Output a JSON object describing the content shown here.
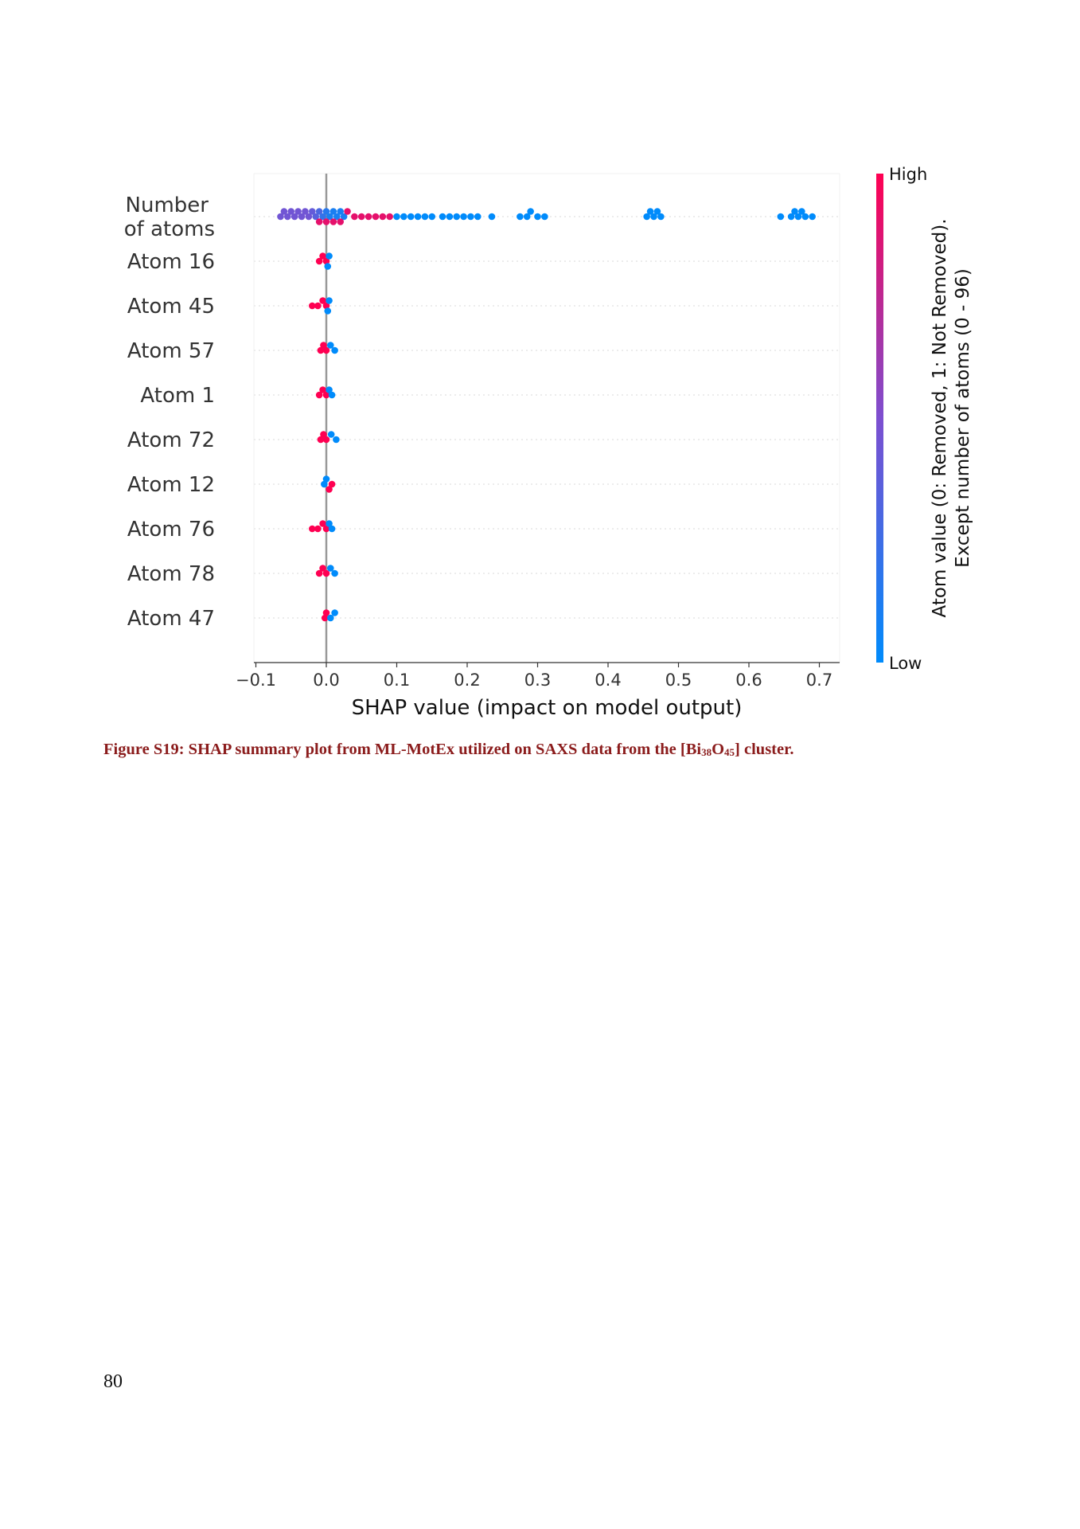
{
  "chart_data": {
    "type": "scatter",
    "subtype": "shap-beeswarm",
    "features": [
      "Number of atoms",
      "Atom 16",
      "Atom 45",
      "Atom 57",
      "Atom 1",
      "Atom 72",
      "Atom 12",
      "Atom 76",
      "Atom 78",
      "Atom 47"
    ],
    "feature_label_lines": [
      [
        "Number",
        "of atoms"
      ],
      [
        "Atom 16"
      ],
      [
        "Atom 45"
      ],
      [
        "Atom 57"
      ],
      [
        "Atom 1"
      ],
      [
        "Atom 72"
      ],
      [
        "Atom 12"
      ],
      [
        "Atom 76"
      ],
      [
        "Atom 78"
      ],
      [
        "Atom 47"
      ]
    ],
    "xlabel": "SHAP value (impact on model output)",
    "xticks": [
      -0.1,
      0.0,
      0.1,
      0.2,
      0.3,
      0.4,
      0.5,
      0.6,
      0.7
    ],
    "xtick_labels": [
      "−0.1",
      "0.0",
      "0.1",
      "0.2",
      "0.3",
      "0.4",
      "0.5",
      "0.6",
      "0.7"
    ],
    "xlim": [
      -0.1,
      0.72
    ],
    "grid": "dotted horizontal per feature",
    "zero_line": 0.0,
    "colorbar": {
      "high_label": "High",
      "low_label": "Low",
      "title_lines": [
        "Atom value (0: Removed, 1: Not Removed).",
        "Except number of atoms (0 - 96)"
      ],
      "colors": [
        "#008bfb",
        "#ff0052"
      ]
    },
    "series": [
      {
        "feature": "Number of atoms",
        "points": [
          {
            "x": -0.065,
            "v": 0.45
          },
          {
            "x": -0.06,
            "v": 0.45
          },
          {
            "x": -0.055,
            "v": 0.45
          },
          {
            "x": -0.05,
            "v": 0.45
          },
          {
            "x": -0.045,
            "v": 0.45
          },
          {
            "x": -0.04,
            "v": 0.45
          },
          {
            "x": -0.035,
            "v": 0.45
          },
          {
            "x": -0.03,
            "v": 0.45
          },
          {
            "x": -0.025,
            "v": 0.45
          },
          {
            "x": -0.02,
            "v": 0.4
          },
          {
            "x": -0.015,
            "v": 0.35
          },
          {
            "x": -0.01,
            "v": 0.3
          },
          {
            "x": -0.005,
            "v": 0.2
          },
          {
            "x": 0.0,
            "v": 0.15
          },
          {
            "x": 0.005,
            "v": 0.1
          },
          {
            "x": 0.01,
            "v": 0.1
          },
          {
            "x": 0.015,
            "v": 0.1
          },
          {
            "x": 0.02,
            "v": 0.1
          },
          {
            "x": 0.025,
            "v": 0.1
          },
          {
            "x": -0.01,
            "v": 0.9
          },
          {
            "x": 0.0,
            "v": 0.9
          },
          {
            "x": 0.01,
            "v": 0.9
          },
          {
            "x": 0.02,
            "v": 0.9
          },
          {
            "x": 0.03,
            "v": 0.9
          },
          {
            "x": 0.04,
            "v": 0.9
          },
          {
            "x": 0.05,
            "v": 0.9
          },
          {
            "x": 0.06,
            "v": 0.9
          },
          {
            "x": 0.07,
            "v": 0.9
          },
          {
            "x": 0.08,
            "v": 0.9
          },
          {
            "x": 0.09,
            "v": 0.9
          },
          {
            "x": 0.1,
            "v": 0.0
          },
          {
            "x": 0.11,
            "v": 0.0
          },
          {
            "x": 0.12,
            "v": 0.0
          },
          {
            "x": 0.13,
            "v": 0.0
          },
          {
            "x": 0.14,
            "v": 0.0
          },
          {
            "x": 0.15,
            "v": 0.0
          },
          {
            "x": 0.165,
            "v": 0.0
          },
          {
            "x": 0.175,
            "v": 0.0
          },
          {
            "x": 0.185,
            "v": 0.0
          },
          {
            "x": 0.195,
            "v": 0.0
          },
          {
            "x": 0.205,
            "v": 0.0
          },
          {
            "x": 0.215,
            "v": 0.0
          },
          {
            "x": 0.235,
            "v": 0.0
          },
          {
            "x": 0.275,
            "v": 0.0
          },
          {
            "x": 0.285,
            "v": 0.0
          },
          {
            "x": 0.29,
            "v": 0.0
          },
          {
            "x": 0.3,
            "v": 0.0
          },
          {
            "x": 0.31,
            "v": 0.0
          },
          {
            "x": 0.455,
            "v": 0.0
          },
          {
            "x": 0.46,
            "v": 0.0
          },
          {
            "x": 0.465,
            "v": 0.0
          },
          {
            "x": 0.47,
            "v": 0.0
          },
          {
            "x": 0.475,
            "v": 0.0
          },
          {
            "x": 0.645,
            "v": 0.0
          },
          {
            "x": 0.66,
            "v": 0.0
          },
          {
            "x": 0.665,
            "v": 0.0
          },
          {
            "x": 0.67,
            "v": 0.0
          },
          {
            "x": 0.675,
            "v": 0.0
          },
          {
            "x": 0.68,
            "v": 0.0
          },
          {
            "x": 0.69,
            "v": 0.0
          }
        ]
      },
      {
        "feature": "Atom 16",
        "points": [
          {
            "x": -0.01,
            "v": 1
          },
          {
            "x": -0.005,
            "v": 1
          },
          {
            "x": 0.0,
            "v": 1
          },
          {
            "x": 0.002,
            "v": 0
          },
          {
            "x": 0.004,
            "v": 0
          }
        ]
      },
      {
        "feature": "Atom 45",
        "points": [
          {
            "x": -0.02,
            "v": 1
          },
          {
            "x": -0.012,
            "v": 1
          },
          {
            "x": -0.005,
            "v": 1
          },
          {
            "x": 0.0,
            "v": 1
          },
          {
            "x": 0.002,
            "v": 0
          },
          {
            "x": 0.004,
            "v": 0
          }
        ]
      },
      {
        "feature": "Atom 57",
        "points": [
          {
            "x": -0.008,
            "v": 1
          },
          {
            "x": -0.004,
            "v": 1
          },
          {
            "x": 0.0,
            "v": 1
          },
          {
            "x": 0.006,
            "v": 0
          },
          {
            "x": 0.012,
            "v": 0
          }
        ]
      },
      {
        "feature": "Atom 1",
        "points": [
          {
            "x": -0.01,
            "v": 1
          },
          {
            "x": -0.005,
            "v": 1
          },
          {
            "x": 0.0,
            "v": 1
          },
          {
            "x": 0.004,
            "v": 0
          },
          {
            "x": 0.008,
            "v": 0
          }
        ]
      },
      {
        "feature": "Atom 72",
        "points": [
          {
            "x": -0.008,
            "v": 1
          },
          {
            "x": -0.004,
            "v": 1
          },
          {
            "x": 0.0,
            "v": 1
          },
          {
            "x": 0.007,
            "v": 0
          },
          {
            "x": 0.014,
            "v": 0
          }
        ]
      },
      {
        "feature": "Atom 12",
        "points": [
          {
            "x": -0.003,
            "v": 0
          },
          {
            "x": 0.0,
            "v": 0
          },
          {
            "x": 0.004,
            "v": 1
          },
          {
            "x": 0.008,
            "v": 1
          }
        ]
      },
      {
        "feature": "Atom 76",
        "points": [
          {
            "x": -0.02,
            "v": 1
          },
          {
            "x": -0.012,
            "v": 1
          },
          {
            "x": -0.005,
            "v": 1
          },
          {
            "x": 0.0,
            "v": 1
          },
          {
            "x": 0.004,
            "v": 0
          },
          {
            "x": 0.008,
            "v": 0
          }
        ]
      },
      {
        "feature": "Atom 78",
        "points": [
          {
            "x": -0.01,
            "v": 1
          },
          {
            "x": -0.005,
            "v": 1
          },
          {
            "x": 0.0,
            "v": 1
          },
          {
            "x": 0.006,
            "v": 0
          },
          {
            "x": 0.012,
            "v": 0
          }
        ]
      },
      {
        "feature": "Atom 47",
        "points": [
          {
            "x": -0.002,
            "v": 1
          },
          {
            "x": 0.0,
            "v": 1
          },
          {
            "x": 0.006,
            "v": 0
          },
          {
            "x": 0.012,
            "v": 0
          }
        ]
      }
    ]
  },
  "caption": {
    "prefix": "Figure S19: SHAP summary plot from ML-MotEx utilized on SAXS data from the [Bi",
    "sub1": "38",
    "mid": "O",
    "sub2": "45",
    "suffix": "] cluster."
  },
  "page_number": "80"
}
